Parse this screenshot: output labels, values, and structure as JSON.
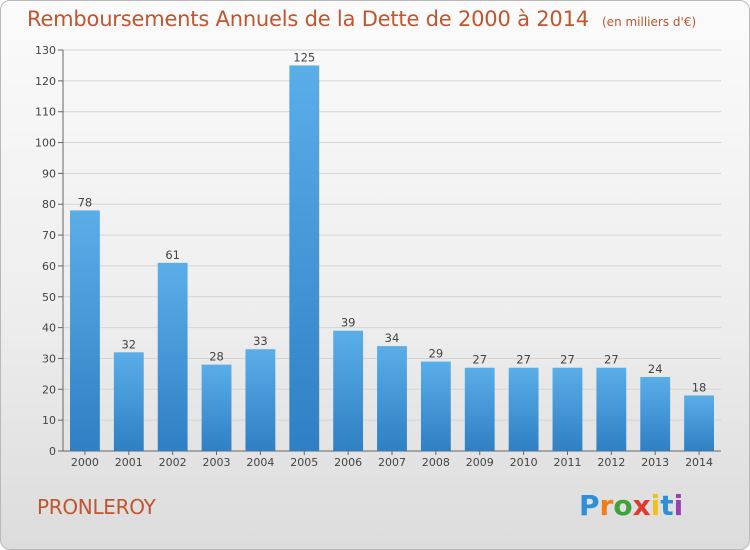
{
  "header": {
    "title": "Remboursements Annuels de la Dette de 2000 à 2014",
    "subtitle": "(en milliers d'€)"
  },
  "footer": {
    "commune": "PRONLEROY",
    "logo_text": "Proxiti",
    "logo_colors": [
      "#2f8fd6",
      "#f07d1a",
      "#3fa23a",
      "#e23a2a",
      "#f2c01a",
      "#2f8fd6",
      "#9b3fb3"
    ]
  },
  "chart_data": {
    "type": "bar",
    "title": "Remboursements Annuels de la Dette de 2000 à 2014",
    "subtitle": "(en milliers d'€)",
    "categories": [
      "2000",
      "2001",
      "2002",
      "2003",
      "2004",
      "2005",
      "2006",
      "2007",
      "2008",
      "2009",
      "2010",
      "2011",
      "2012",
      "2013",
      "2014"
    ],
    "values": [
      78,
      32,
      61,
      28,
      33,
      125,
      39,
      34,
      29,
      27,
      27,
      27,
      27,
      24,
      18
    ],
    "ylim": [
      0,
      130
    ],
    "yticks": [
      0,
      10,
      20,
      30,
      40,
      50,
      60,
      70,
      80,
      90,
      100,
      110,
      120,
      130
    ],
    "grid": true,
    "bar_color_light": "#5aaee8",
    "bar_color_dark": "#2f7fc4",
    "grid_color": "#d4d4d4"
  }
}
